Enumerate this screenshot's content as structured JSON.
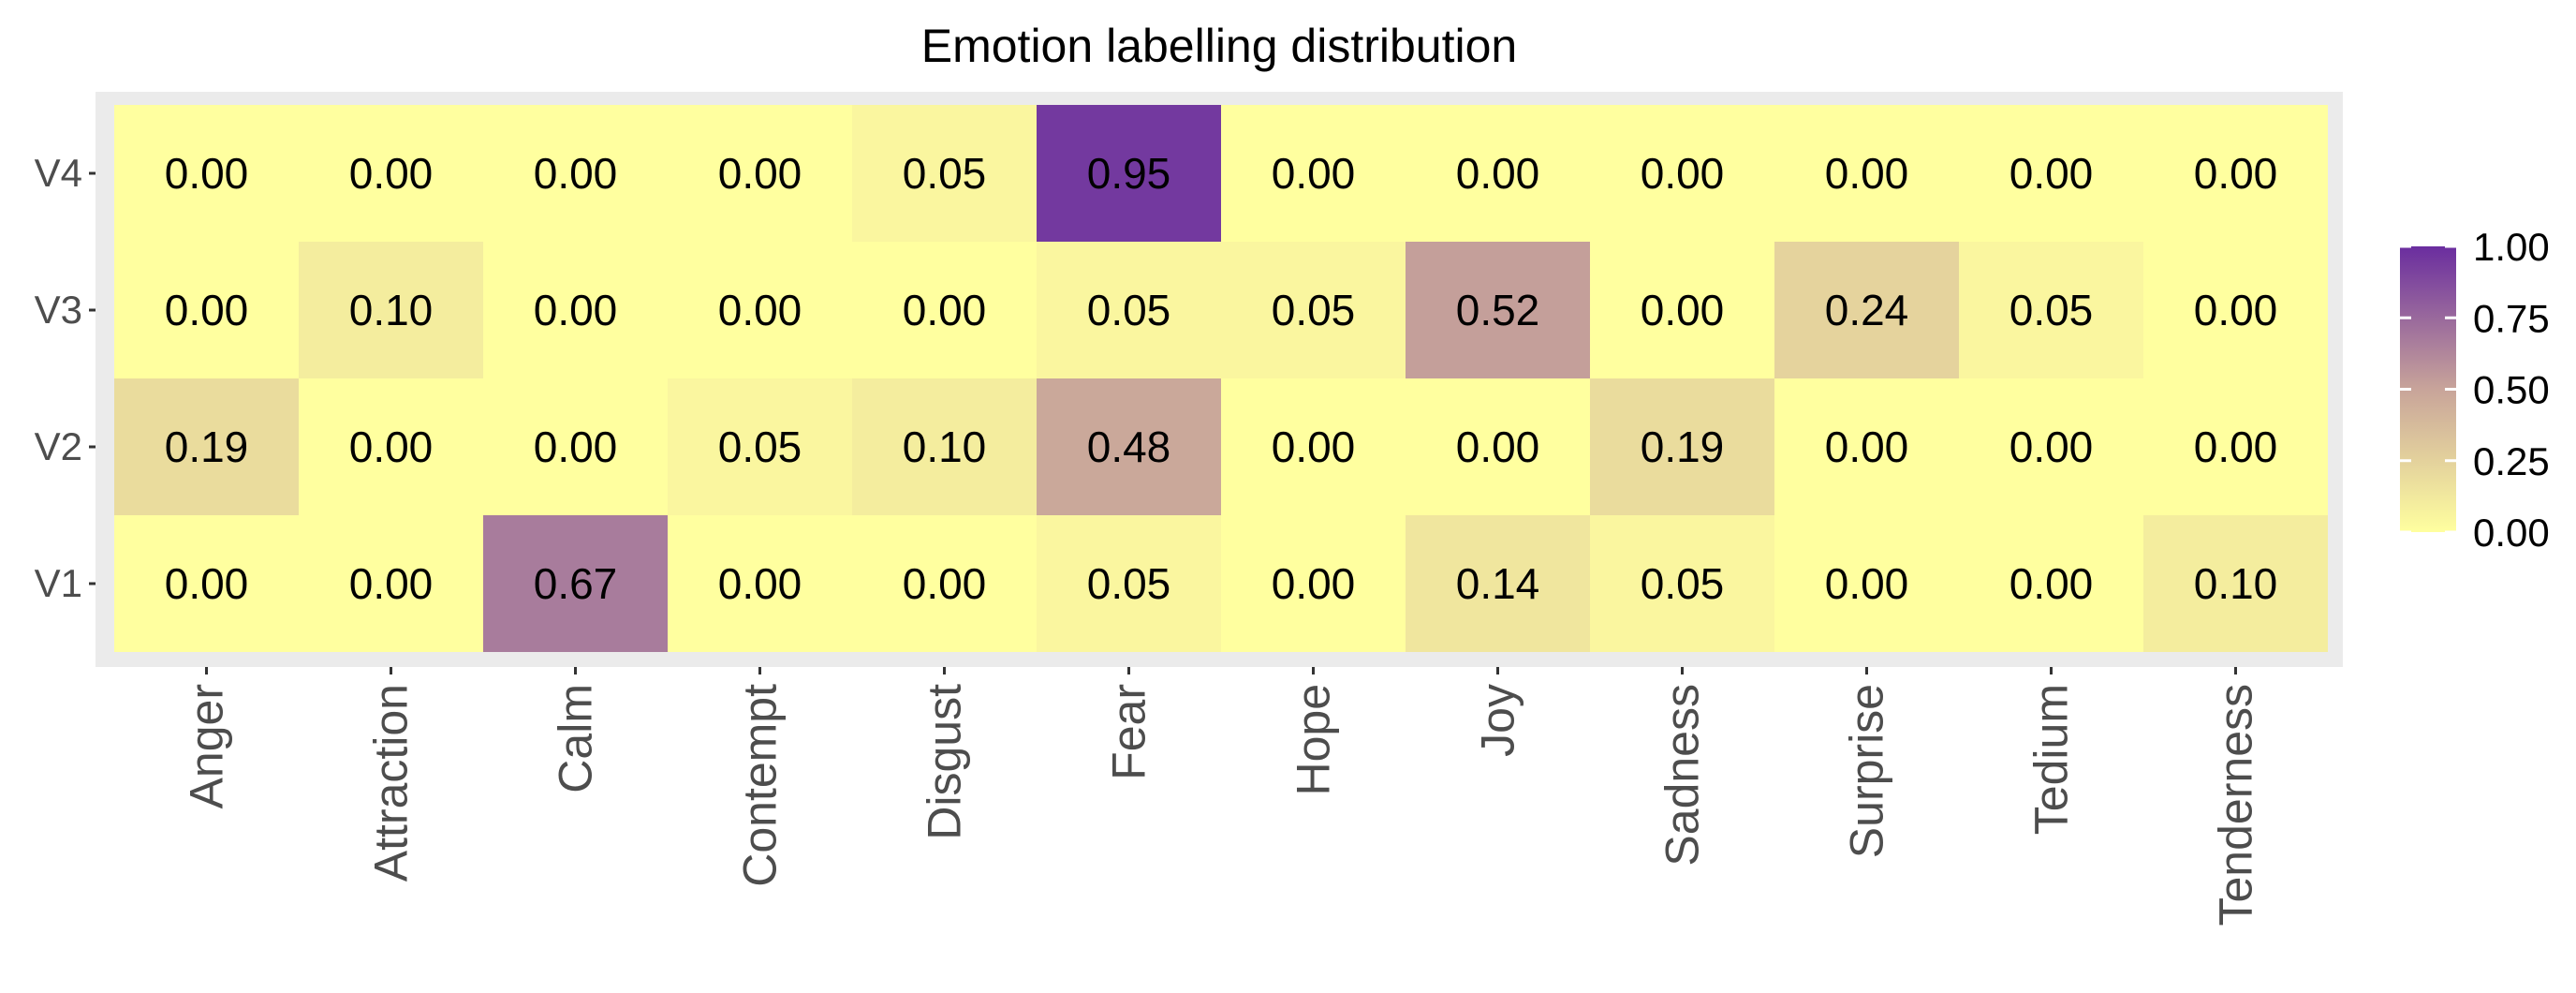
{
  "chart_data": {
    "type": "heatmap",
    "title": "Emotion labelling distribution",
    "xlabel": "",
    "ylabel": "",
    "x_categories": [
      "Anger",
      "Attraction",
      "Calm",
      "Contempt",
      "Disgust",
      "Fear",
      "Hope",
      "Joy",
      "Sadness",
      "Surprise",
      "Tedium",
      "Tenderness"
    ],
    "y_categories": [
      "V4",
      "V3",
      "V2",
      "V1"
    ],
    "values": [
      [
        0.0,
        0.0,
        0.0,
        0.0,
        0.05,
        0.95,
        0.0,
        0.0,
        0.0,
        0.0,
        0.0,
        0.0
      ],
      [
        0.0,
        0.1,
        0.0,
        0.0,
        0.0,
        0.05,
        0.05,
        0.52,
        0.0,
        0.24,
        0.05,
        0.0
      ],
      [
        0.19,
        0.0,
        0.0,
        0.05,
        0.1,
        0.48,
        0.0,
        0.0,
        0.19,
        0.0,
        0.0,
        0.0
      ],
      [
        0.0,
        0.0,
        0.67,
        0.0,
        0.0,
        0.05,
        0.0,
        0.14,
        0.05,
        0.0,
        0.0,
        0.1
      ]
    ],
    "value_range": [
      0,
      1
    ],
    "colorbar": {
      "ticks": [
        "1.00",
        "0.75",
        "0.50",
        "0.25",
        "0.00"
      ],
      "tick_values": [
        1.0,
        0.75,
        0.5,
        0.25,
        0.0
      ],
      "low_color": "#ffff9f",
      "mid_color": "#c8a49a",
      "high_color": "#6a2d9f",
      "placement": "right"
    },
    "panel_background": "#ebebeb"
  }
}
